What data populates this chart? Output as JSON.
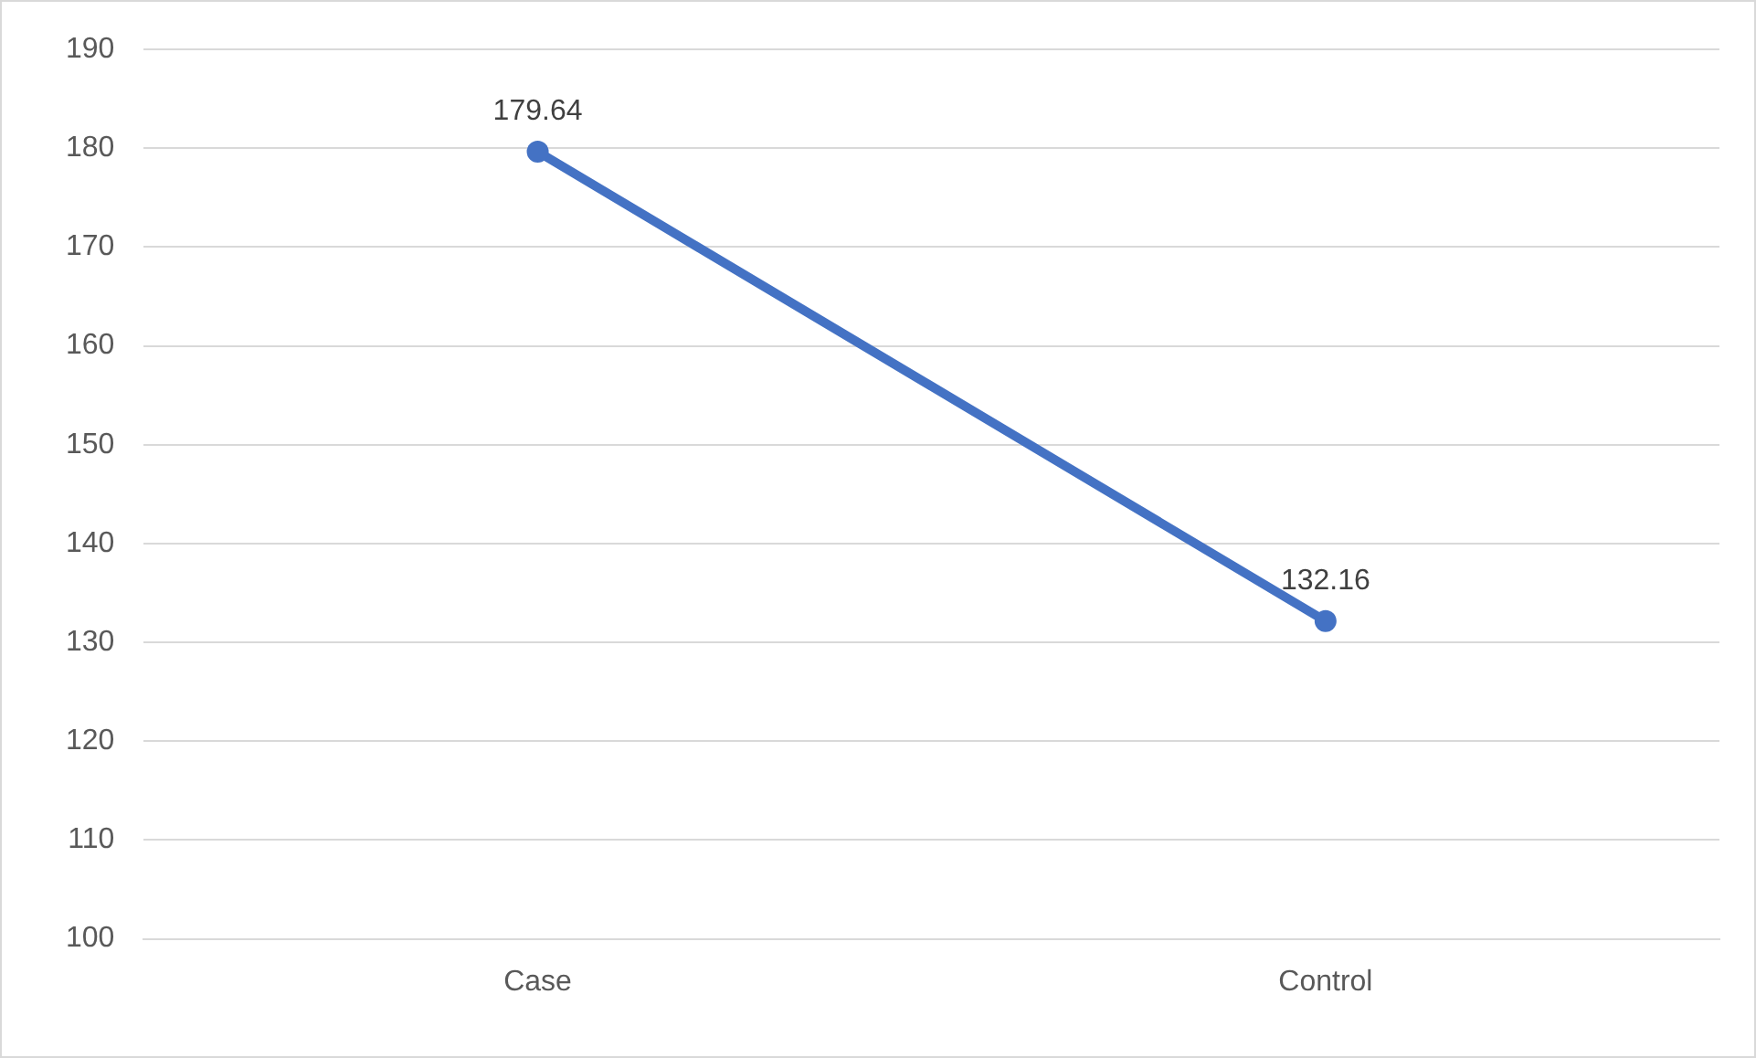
{
  "chart_data": {
    "type": "line",
    "categories": [
      "Case",
      "Control"
    ],
    "series": [
      {
        "color": "#4472c4",
        "values": [
          179.64,
          132.16
        ]
      }
    ],
    "ylim": [
      100,
      190
    ],
    "yticks": [
      100,
      110,
      120,
      130,
      140,
      150,
      160,
      170,
      180,
      190
    ],
    "grid": "y",
    "legend": false,
    "marker": "circle",
    "line_style": "solid",
    "data_labels": true
  }
}
